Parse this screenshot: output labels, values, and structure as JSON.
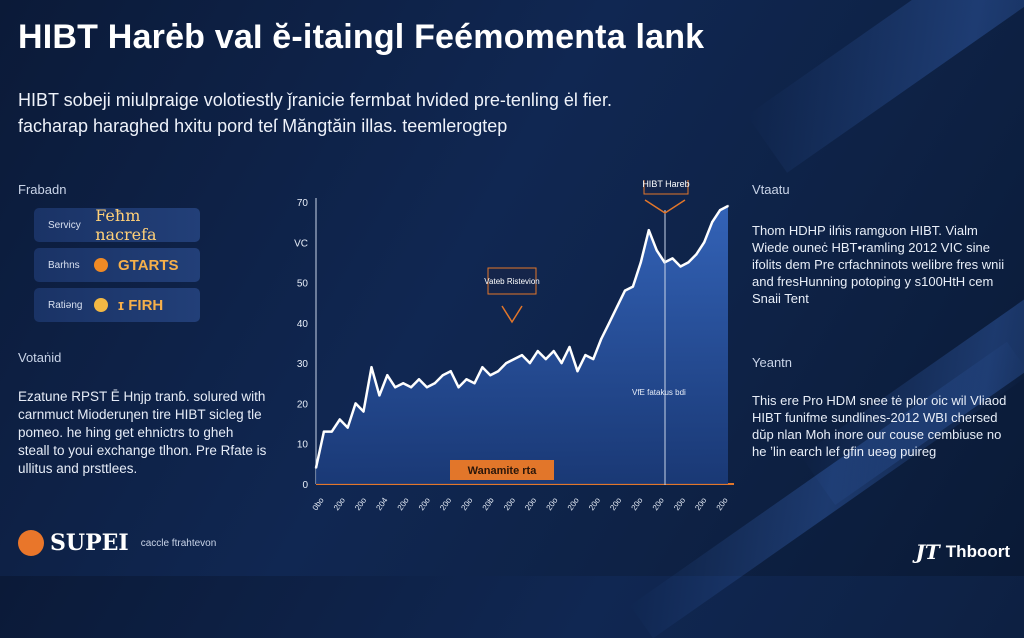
{
  "header": {
    "title": "HIBT Harėb vaI ĕ-itaingl Feémomenta lank",
    "subtitle_line1": "HIBT sobeji miulpraige volotiestly ǰranicie fermbat hvided pre-tenling ėl fier.",
    "subtitle_line2": "facharap haraghed hxitu pord teſ Măngtăin illas. teemlerogtep"
  },
  "left_panel": {
    "section1_label": "Frabadn",
    "pills": [
      {
        "small": "Servicy",
        "big": "Feħm nacrefa"
      },
      {
        "small": "Barhns",
        "big": "GTARTS"
      },
      {
        "small": "Ratiəng",
        "big": "ɪ FIRH"
      }
    ],
    "section2_label": "Votaṅid",
    "body": "Ezatune RPST Ē Hnjp tranɓ. solured with carnmuct Mioderuƞen tire HIBT sicleg tle pomeo. he hing get ehnictrs to gheh steall to youi exchange tlhon. Pre Rfate is ullitus and prsttlees."
  },
  "chart_labels": {
    "top_callout": "HIBT Hareb",
    "mid_callout": "Vateb Ristevion",
    "event_label": "VfE fatakus bdi",
    "bottom_banner": "Wanamite rta"
  },
  "chart_data": {
    "type": "area",
    "ylim": [
      0,
      70
    ],
    "yticks": [
      0,
      10,
      20,
      30,
      40,
      50,
      60,
      70
    ],
    "ytick_labels": [
      "0",
      "10",
      "20",
      "30",
      "40",
      "50",
      "VC",
      "70"
    ],
    "xtick_labels": [
      "0bo",
      "20o",
      "20o",
      "204",
      "20o",
      "20o",
      "20o",
      "20o",
      "20b",
      "20o",
      "20o",
      "20o",
      "20o",
      "20o",
      "20o",
      "20o",
      "20o",
      "20o",
      "20o",
      "20o"
    ],
    "series": [
      {
        "values": [
          4,
          13,
          13,
          16,
          14,
          20,
          18,
          29,
          22,
          27,
          24,
          25,
          24,
          26,
          24,
          25,
          27,
          28,
          24,
          26,
          25,
          29,
          27,
          28,
          30,
          31,
          32,
          30,
          33,
          31,
          33,
          30,
          34,
          28,
          32,
          31,
          36,
          40,
          44,
          48,
          49,
          55,
          63,
          58,
          55,
          56,
          54,
          55,
          57,
          60,
          65,
          68,
          69
        ]
      }
    ],
    "grid": false
  },
  "right_panel": {
    "section1_title": "Vtaatu",
    "section1_body": "Thom HDHP ilńis ramgʊon HIBT. Vialm Wiede ouneċ HBT•ramling 2012 VIC sine ifolits dem Pre crfachninots welibre fres wnii and fresHunning potoping y s100HtH cem Snaii Tent",
    "section2_title": "Yeantn",
    "section2_body": "This ere Pro HDM snee tė plor oic wil Vliaod HIBT funifme sundlines-2012 WBI chersed dŭp nlan Moh inore our couse cembiuse no he ʼlin earch lef gfin ueəg puireg"
  },
  "footer": {
    "left_logo": "SUPEI",
    "left_tagline": "caccle ftrahtevon",
    "right_logo_mark": "JT",
    "right_logo_name": "Thboort"
  },
  "colors": {
    "background": "#0e2246",
    "accent_orange": "#f08a25",
    "area_fill": "#2a58a8",
    "line": "#ffffff"
  }
}
